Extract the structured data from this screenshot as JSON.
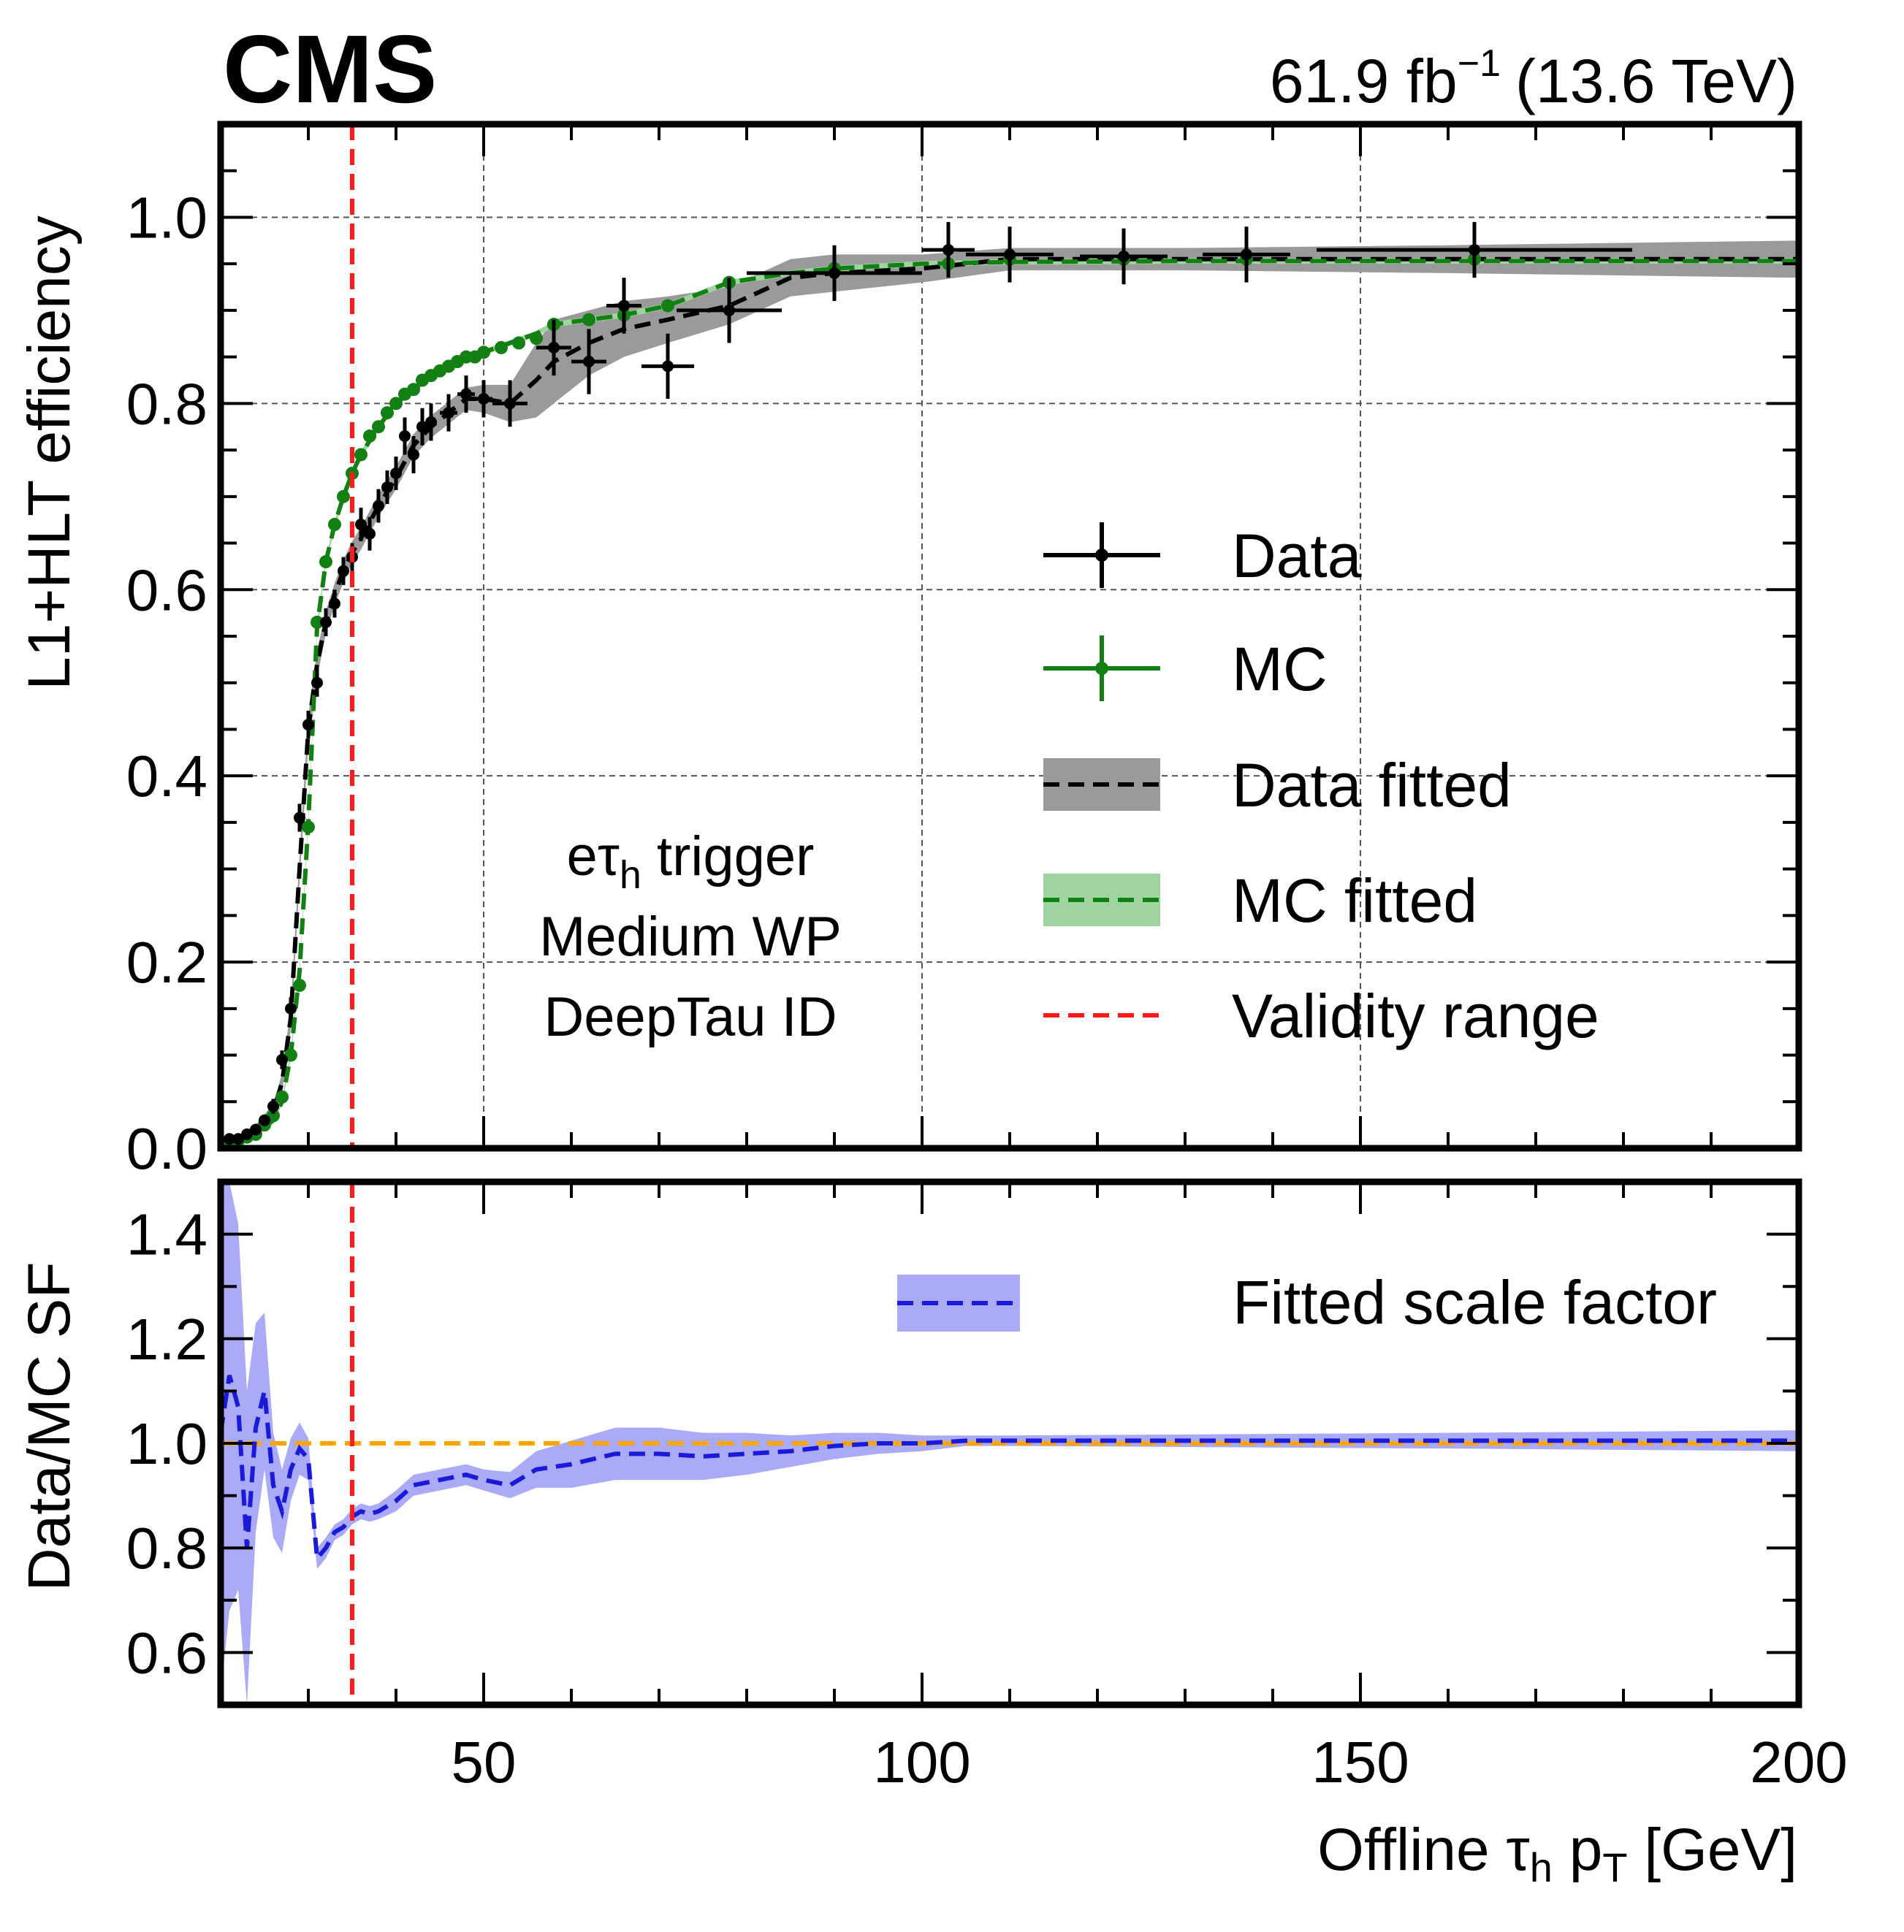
{
  "header": {
    "experiment": "CMS",
    "lumi_value": "61.9 fb",
    "lumi_exp": "−1",
    "energy": "(13.6 TeV)"
  },
  "annotation": {
    "line1_prefix": "eτ",
    "line1_sub": "h",
    "line1_suffix": " trigger",
    "line2": "Medium WP",
    "line3": "DeepTau ID"
  },
  "colors": {
    "data": "#000000",
    "mc": "#138013",
    "data_band": "#9a9a9a",
    "mc_band": "#9fd39f",
    "validity": "#ff1a1a",
    "sf": "#1a1ad9",
    "sf_band": "#aaaaf7",
    "unity": "#ffa500"
  },
  "chart_data": [
    {
      "type": "scatter",
      "panel": "top",
      "ylabel": "L1+HLT efficiency",
      "xlim": [
        20,
        200
      ],
      "ylim": [
        0.0,
        1.1
      ],
      "yticks": [
        "0.0",
        "0.2",
        "0.4",
        "0.6",
        "0.8",
        "1.0"
      ],
      "grid": true,
      "legend_position": "right",
      "legend": [
        "Data",
        "MC",
        "Data fitted",
        "MC fitted",
        "Validity range"
      ],
      "validity_range_x": 35,
      "series": [
        {
          "name": "Data",
          "points": [
            {
              "x": 21,
              "y": 0.01,
              "xerr": 0.5,
              "yerr": 0.005
            },
            {
              "x": 22,
              "y": 0.01,
              "xerr": 0.5,
              "yerr": 0.005
            },
            {
              "x": 23,
              "y": 0.015,
              "xerr": 0.5,
              "yerr": 0.005
            },
            {
              "x": 24,
              "y": 0.02,
              "xerr": 0.5,
              "yerr": 0.005
            },
            {
              "x": 25,
              "y": 0.03,
              "xerr": 0.5,
              "yerr": 0.006
            },
            {
              "x": 26,
              "y": 0.045,
              "xerr": 0.5,
              "yerr": 0.008
            },
            {
              "x": 27,
              "y": 0.095,
              "xerr": 0.5,
              "yerr": 0.01
            },
            {
              "x": 28,
              "y": 0.15,
              "xerr": 0.5,
              "yerr": 0.012
            },
            {
              "x": 29,
              "y": 0.355,
              "xerr": 0.5,
              "yerr": 0.015
            },
            {
              "x": 30,
              "y": 0.455,
              "xerr": 0.5,
              "yerr": 0.015
            },
            {
              "x": 31,
              "y": 0.5,
              "xerr": 0.5,
              "yerr": 0.015
            },
            {
              "x": 32,
              "y": 0.565,
              "xerr": 0.5,
              "yerr": 0.015
            },
            {
              "x": 33,
              "y": 0.585,
              "xerr": 0.5,
              "yerr": 0.015
            },
            {
              "x": 34,
              "y": 0.62,
              "xerr": 0.5,
              "yerr": 0.015
            },
            {
              "x": 35,
              "y": 0.635,
              "xerr": 0.5,
              "yerr": 0.015
            },
            {
              "x": 36,
              "y": 0.67,
              "xerr": 0.5,
              "yerr": 0.018
            },
            {
              "x": 37,
              "y": 0.66,
              "xerr": 0.5,
              "yerr": 0.018
            },
            {
              "x": 38,
              "y": 0.69,
              "xerr": 0.5,
              "yerr": 0.018
            },
            {
              "x": 39,
              "y": 0.71,
              "xerr": 0.5,
              "yerr": 0.018
            },
            {
              "x": 40,
              "y": 0.725,
              "xerr": 0.5,
              "yerr": 0.018
            },
            {
              "x": 41,
              "y": 0.765,
              "xerr": 0.5,
              "yerr": 0.02
            },
            {
              "x": 42,
              "y": 0.745,
              "xerr": 0.5,
              "yerr": 0.02
            },
            {
              "x": 43,
              "y": 0.775,
              "xerr": 0.5,
              "yerr": 0.02
            },
            {
              "x": 44,
              "y": 0.78,
              "xerr": 0.5,
              "yerr": 0.02
            },
            {
              "x": 46,
              "y": 0.79,
              "xerr": 1.0,
              "yerr": 0.02
            },
            {
              "x": 48,
              "y": 0.81,
              "xerr": 1.0,
              "yerr": 0.02
            },
            {
              "x": 50,
              "y": 0.805,
              "xerr": 1.0,
              "yerr": 0.02
            },
            {
              "x": 53,
              "y": 0.8,
              "xerr": 2.0,
              "yerr": 0.025
            },
            {
              "x": 58,
              "y": 0.86,
              "xerr": 2.0,
              "yerr": 0.03
            },
            {
              "x": 62,
              "y": 0.845,
              "xerr": 2.0,
              "yerr": 0.035
            },
            {
              "x": 66,
              "y": 0.905,
              "xerr": 2.0,
              "yerr": 0.03
            },
            {
              "x": 71,
              "y": 0.84,
              "xerr": 3.0,
              "yerr": 0.035
            },
            {
              "x": 78,
              "y": 0.9,
              "xerr": 6.0,
              "yerr": 0.035
            },
            {
              "x": 90,
              "y": 0.94,
              "xerr": 10.0,
              "yerr": 0.03
            },
            {
              "x": 103,
              "y": 0.965,
              "xerr": 3.0,
              "yerr": 0.03
            },
            {
              "x": 110,
              "y": 0.96,
              "xerr": 5.0,
              "yerr": 0.03
            },
            {
              "x": 123,
              "y": 0.958,
              "xerr": 5.0,
              "yerr": 0.03
            },
            {
              "x": 137,
              "y": 0.96,
              "xerr": 5.0,
              "yerr": 0.03
            },
            {
              "x": 163,
              "y": 0.965,
              "xerr": 18.0,
              "yerr": 0.03
            }
          ]
        },
        {
          "name": "MC",
          "points": [
            {
              "x": 21,
              "y": 0.005
            },
            {
              "x": 22,
              "y": 0.008
            },
            {
              "x": 23,
              "y": 0.012
            },
            {
              "x": 24,
              "y": 0.015
            },
            {
              "x": 25,
              "y": 0.025
            },
            {
              "x": 26,
              "y": 0.035
            },
            {
              "x": 27,
              "y": 0.055
            },
            {
              "x": 28,
              "y": 0.1
            },
            {
              "x": 29,
              "y": 0.175
            },
            {
              "x": 30,
              "y": 0.345
            },
            {
              "x": 31,
              "y": 0.565
            },
            {
              "x": 32,
              "y": 0.63
            },
            {
              "x": 33,
              "y": 0.67
            },
            {
              "x": 34,
              "y": 0.7
            },
            {
              "x": 35,
              "y": 0.725
            },
            {
              "x": 36,
              "y": 0.745
            },
            {
              "x": 37,
              "y": 0.765
            },
            {
              "x": 38,
              "y": 0.775
            },
            {
              "x": 39,
              "y": 0.79
            },
            {
              "x": 40,
              "y": 0.8
            },
            {
              "x": 41,
              "y": 0.81
            },
            {
              "x": 42,
              "y": 0.815
            },
            {
              "x": 43,
              "y": 0.825
            },
            {
              "x": 44,
              "y": 0.83
            },
            {
              "x": 45,
              "y": 0.835
            },
            {
              "x": 46,
              "y": 0.84
            },
            {
              "x": 47,
              "y": 0.845
            },
            {
              "x": 48,
              "y": 0.85
            },
            {
              "x": 49,
              "y": 0.85
            },
            {
              "x": 50,
              "y": 0.855
            },
            {
              "x": 52,
              "y": 0.86
            },
            {
              "x": 54,
              "y": 0.865
            },
            {
              "x": 56,
              "y": 0.87
            },
            {
              "x": 58,
              "y": 0.885
            },
            {
              "x": 62,
              "y": 0.89
            },
            {
              "x": 66,
              "y": 0.895
            },
            {
              "x": 71,
              "y": 0.905
            },
            {
              "x": 78,
              "y": 0.93
            },
            {
              "x": 90,
              "y": 0.945
            },
            {
              "x": 103,
              "y": 0.95
            },
            {
              "x": 110,
              "y": 0.955
            },
            {
              "x": 123,
              "y": 0.955
            },
            {
              "x": 137,
              "y": 0.955
            },
            {
              "x": 163,
              "y": 0.955
            }
          ]
        },
        {
          "name": "Data fitted",
          "x": [
            20,
            22,
            24,
            26,
            27,
            28,
            29,
            30,
            31,
            32,
            33,
            34,
            35,
            36,
            38,
            40,
            42,
            44,
            46,
            48,
            50,
            53,
            56,
            58,
            62,
            66,
            71,
            78,
            85,
            90,
            100,
            110,
            130,
            160,
            200
          ],
          "y": [
            0.005,
            0.01,
            0.02,
            0.04,
            0.07,
            0.14,
            0.3,
            0.45,
            0.52,
            0.565,
            0.595,
            0.62,
            0.64,
            0.655,
            0.69,
            0.72,
            0.755,
            0.775,
            0.79,
            0.805,
            0.805,
            0.8,
            0.825,
            0.845,
            0.865,
            0.88,
            0.89,
            0.905,
            0.935,
            0.94,
            0.945,
            0.955,
            0.955,
            0.955,
            0.955
          ],
          "band": [
            0.003,
            0.004,
            0.005,
            0.008,
            0.01,
            0.012,
            0.015,
            0.015,
            0.015,
            0.012,
            0.012,
            0.012,
            0.012,
            0.012,
            0.012,
            0.012,
            0.012,
            0.012,
            0.012,
            0.012,
            0.015,
            0.02,
            0.04,
            0.045,
            0.035,
            0.03,
            0.025,
            0.02,
            0.02,
            0.02,
            0.015,
            0.012,
            0.012,
            0.015,
            0.02
          ]
        },
        {
          "name": "MC fitted",
          "x": [
            20,
            22,
            24,
            26,
            27,
            28,
            29,
            30,
            31,
            32,
            33,
            34,
            35,
            36,
            38,
            40,
            42,
            44,
            46,
            48,
            50,
            53,
            56,
            58,
            62,
            66,
            71,
            78,
            85,
            90,
            100,
            110,
            130,
            160,
            200
          ],
          "y": [
            0.004,
            0.008,
            0.015,
            0.03,
            0.05,
            0.1,
            0.19,
            0.35,
            0.56,
            0.63,
            0.67,
            0.7,
            0.725,
            0.745,
            0.775,
            0.8,
            0.815,
            0.83,
            0.84,
            0.85,
            0.855,
            0.865,
            0.875,
            0.885,
            0.89,
            0.895,
            0.905,
            0.93,
            0.94,
            0.945,
            0.95,
            0.952,
            0.953,
            0.953,
            0.953
          ],
          "band": [
            0.002,
            0.002,
            0.002,
            0.003,
            0.003,
            0.004,
            0.005,
            0.005,
            0.005,
            0.004,
            0.004,
            0.004,
            0.004,
            0.004,
            0.003,
            0.003,
            0.003,
            0.003,
            0.003,
            0.003,
            0.003,
            0.003,
            0.003,
            0.003,
            0.003,
            0.003,
            0.003,
            0.003,
            0.003,
            0.003,
            0.003,
            0.003,
            0.003,
            0.003,
            0.003
          ]
        }
      ]
    },
    {
      "type": "line",
      "panel": "bottom",
      "ylabel": "Data/MC SF",
      "xlabel_prefix": "Offline τ",
      "xlabel_sub1": "h",
      "xlabel_mid": " p",
      "xlabel_sub2": "T",
      "xlabel_suffix": " [GeV]",
      "xlim": [
        20,
        200
      ],
      "ylim": [
        0.5,
        1.5
      ],
      "xticks": [
        "50",
        "100",
        "150",
        "200"
      ],
      "yticks": [
        "0.6",
        "0.8",
        "1.0",
        "1.2",
        "1.4"
      ],
      "legend": [
        "Fitted scale factor"
      ],
      "legend_position": "top-right",
      "unity_line": 1.0,
      "validity_range_x": 35,
      "series": [
        {
          "name": "Fitted scale factor",
          "x": [
            20,
            21,
            22,
            23,
            24,
            25,
            26,
            27,
            28,
            29,
            30,
            31,
            32,
            33,
            34,
            35,
            36,
            37,
            38,
            40,
            42,
            45,
            48,
            50,
            53,
            56,
            60,
            65,
            70,
            75,
            80,
            85,
            90,
            95,
            100,
            105,
            110,
            130,
            160,
            200
          ],
          "y": [
            1.02,
            1.13,
            1.07,
            0.8,
            1.03,
            1.1,
            0.92,
            0.87,
            0.95,
            0.99,
            0.97,
            0.78,
            0.8,
            0.83,
            0.84,
            0.86,
            0.87,
            0.865,
            0.87,
            0.89,
            0.92,
            0.93,
            0.94,
            0.93,
            0.92,
            0.95,
            0.96,
            0.98,
            0.98,
            0.975,
            0.98,
            0.985,
            0.995,
            1.0,
            1.0,
            1.005,
            1.005,
            1.005,
            1.005,
            1.005
          ],
          "band": [
            0.5,
            0.45,
            0.35,
            0.3,
            0.2,
            0.15,
            0.1,
            0.08,
            0.06,
            0.05,
            0.04,
            0.02,
            0.02,
            0.015,
            0.015,
            0.015,
            0.015,
            0.015,
            0.015,
            0.02,
            0.02,
            0.02,
            0.02,
            0.02,
            0.025,
            0.035,
            0.045,
            0.05,
            0.05,
            0.045,
            0.04,
            0.03,
            0.025,
            0.02,
            0.015,
            0.01,
            0.01,
            0.012,
            0.015,
            0.02
          ]
        }
      ]
    }
  ]
}
